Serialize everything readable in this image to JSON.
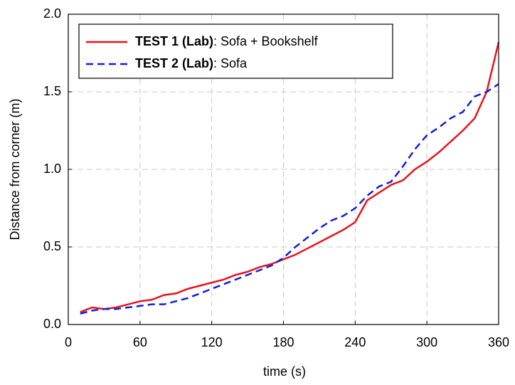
{
  "chart_data": {
    "type": "line",
    "x_label": "time (s)",
    "y_label": "Distance from corner (m)",
    "x": [
      10,
      20,
      30,
      40,
      50,
      60,
      70,
      80,
      90,
      100,
      110,
      120,
      130,
      140,
      150,
      160,
      170,
      180,
      190,
      200,
      210,
      220,
      230,
      240,
      250,
      260,
      270,
      280,
      290,
      300,
      310,
      320,
      330,
      340,
      350,
      360
    ],
    "series": [
      {
        "name": "TEST 1 (Lab): Sofa + Bookshelf",
        "color": "#e8141b",
        "dash": false,
        "values": [
          0.08,
          0.11,
          0.1,
          0.11,
          0.13,
          0.15,
          0.16,
          0.19,
          0.2,
          0.23,
          0.25,
          0.27,
          0.29,
          0.32,
          0.34,
          0.37,
          0.39,
          0.42,
          0.45,
          0.49,
          0.53,
          0.57,
          0.61,
          0.66,
          0.8,
          0.85,
          0.9,
          0.93,
          1.0,
          1.05,
          1.11,
          1.18,
          1.25,
          1.33,
          1.5,
          1.82
        ]
      },
      {
        "name": "TEST 2 (Lab): Sofa",
        "color": "#1020d8",
        "dash": true,
        "values": [
          0.07,
          0.09,
          0.1,
          0.1,
          0.11,
          0.12,
          0.13,
          0.13,
          0.15,
          0.17,
          0.2,
          0.23,
          0.26,
          0.29,
          0.32,
          0.35,
          0.38,
          0.43,
          0.5,
          0.56,
          0.62,
          0.67,
          0.7,
          0.75,
          0.83,
          0.89,
          0.92,
          1.02,
          1.13,
          1.22,
          1.27,
          1.33,
          1.37,
          1.47,
          1.5,
          1.55
        ]
      }
    ],
    "xlim": [
      0,
      360
    ],
    "xticks": [
      0,
      60,
      120,
      180,
      240,
      300,
      360
    ],
    "ylim": [
      0,
      2
    ],
    "yticks": [
      {
        "value": 0,
        "label": "0.0"
      },
      0.5,
      {
        "value": 1,
        "label": "1.0"
      },
      1.5,
      {
        "value": 2,
        "label": "2.0"
      }
    ],
    "grid": true,
    "legend": "upper left"
  }
}
